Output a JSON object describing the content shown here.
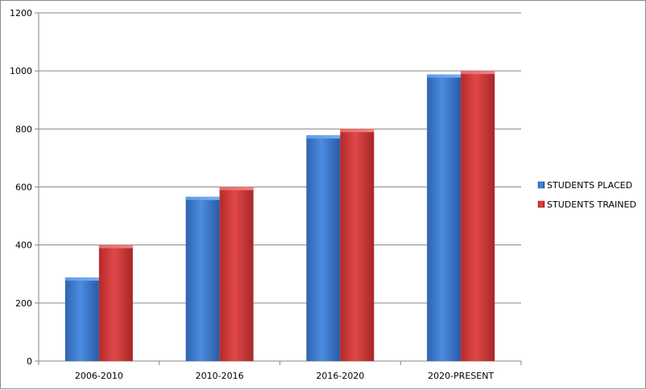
{
  "chart_data": {
    "type": "bar",
    "categories": [
      "2006-2010",
      "2010-2016",
      "2016-2020",
      "2020-PRESENT"
    ],
    "series": [
      {
        "name": "STUDENTS PLACED",
        "values": [
          288,
          566,
          778,
          988
        ],
        "color": "#3f7fd0"
      },
      {
        "name": "STUDENTS TRAINED",
        "values": [
          400,
          600,
          800,
          1000
        ],
        "color": "#d23b3b"
      }
    ],
    "ylim": [
      0,
      1200
    ],
    "yticks": [
      "0",
      "200",
      "400",
      "600",
      "800",
      "1000",
      "1200"
    ],
    "grid": true,
    "legend_position": "right"
  }
}
